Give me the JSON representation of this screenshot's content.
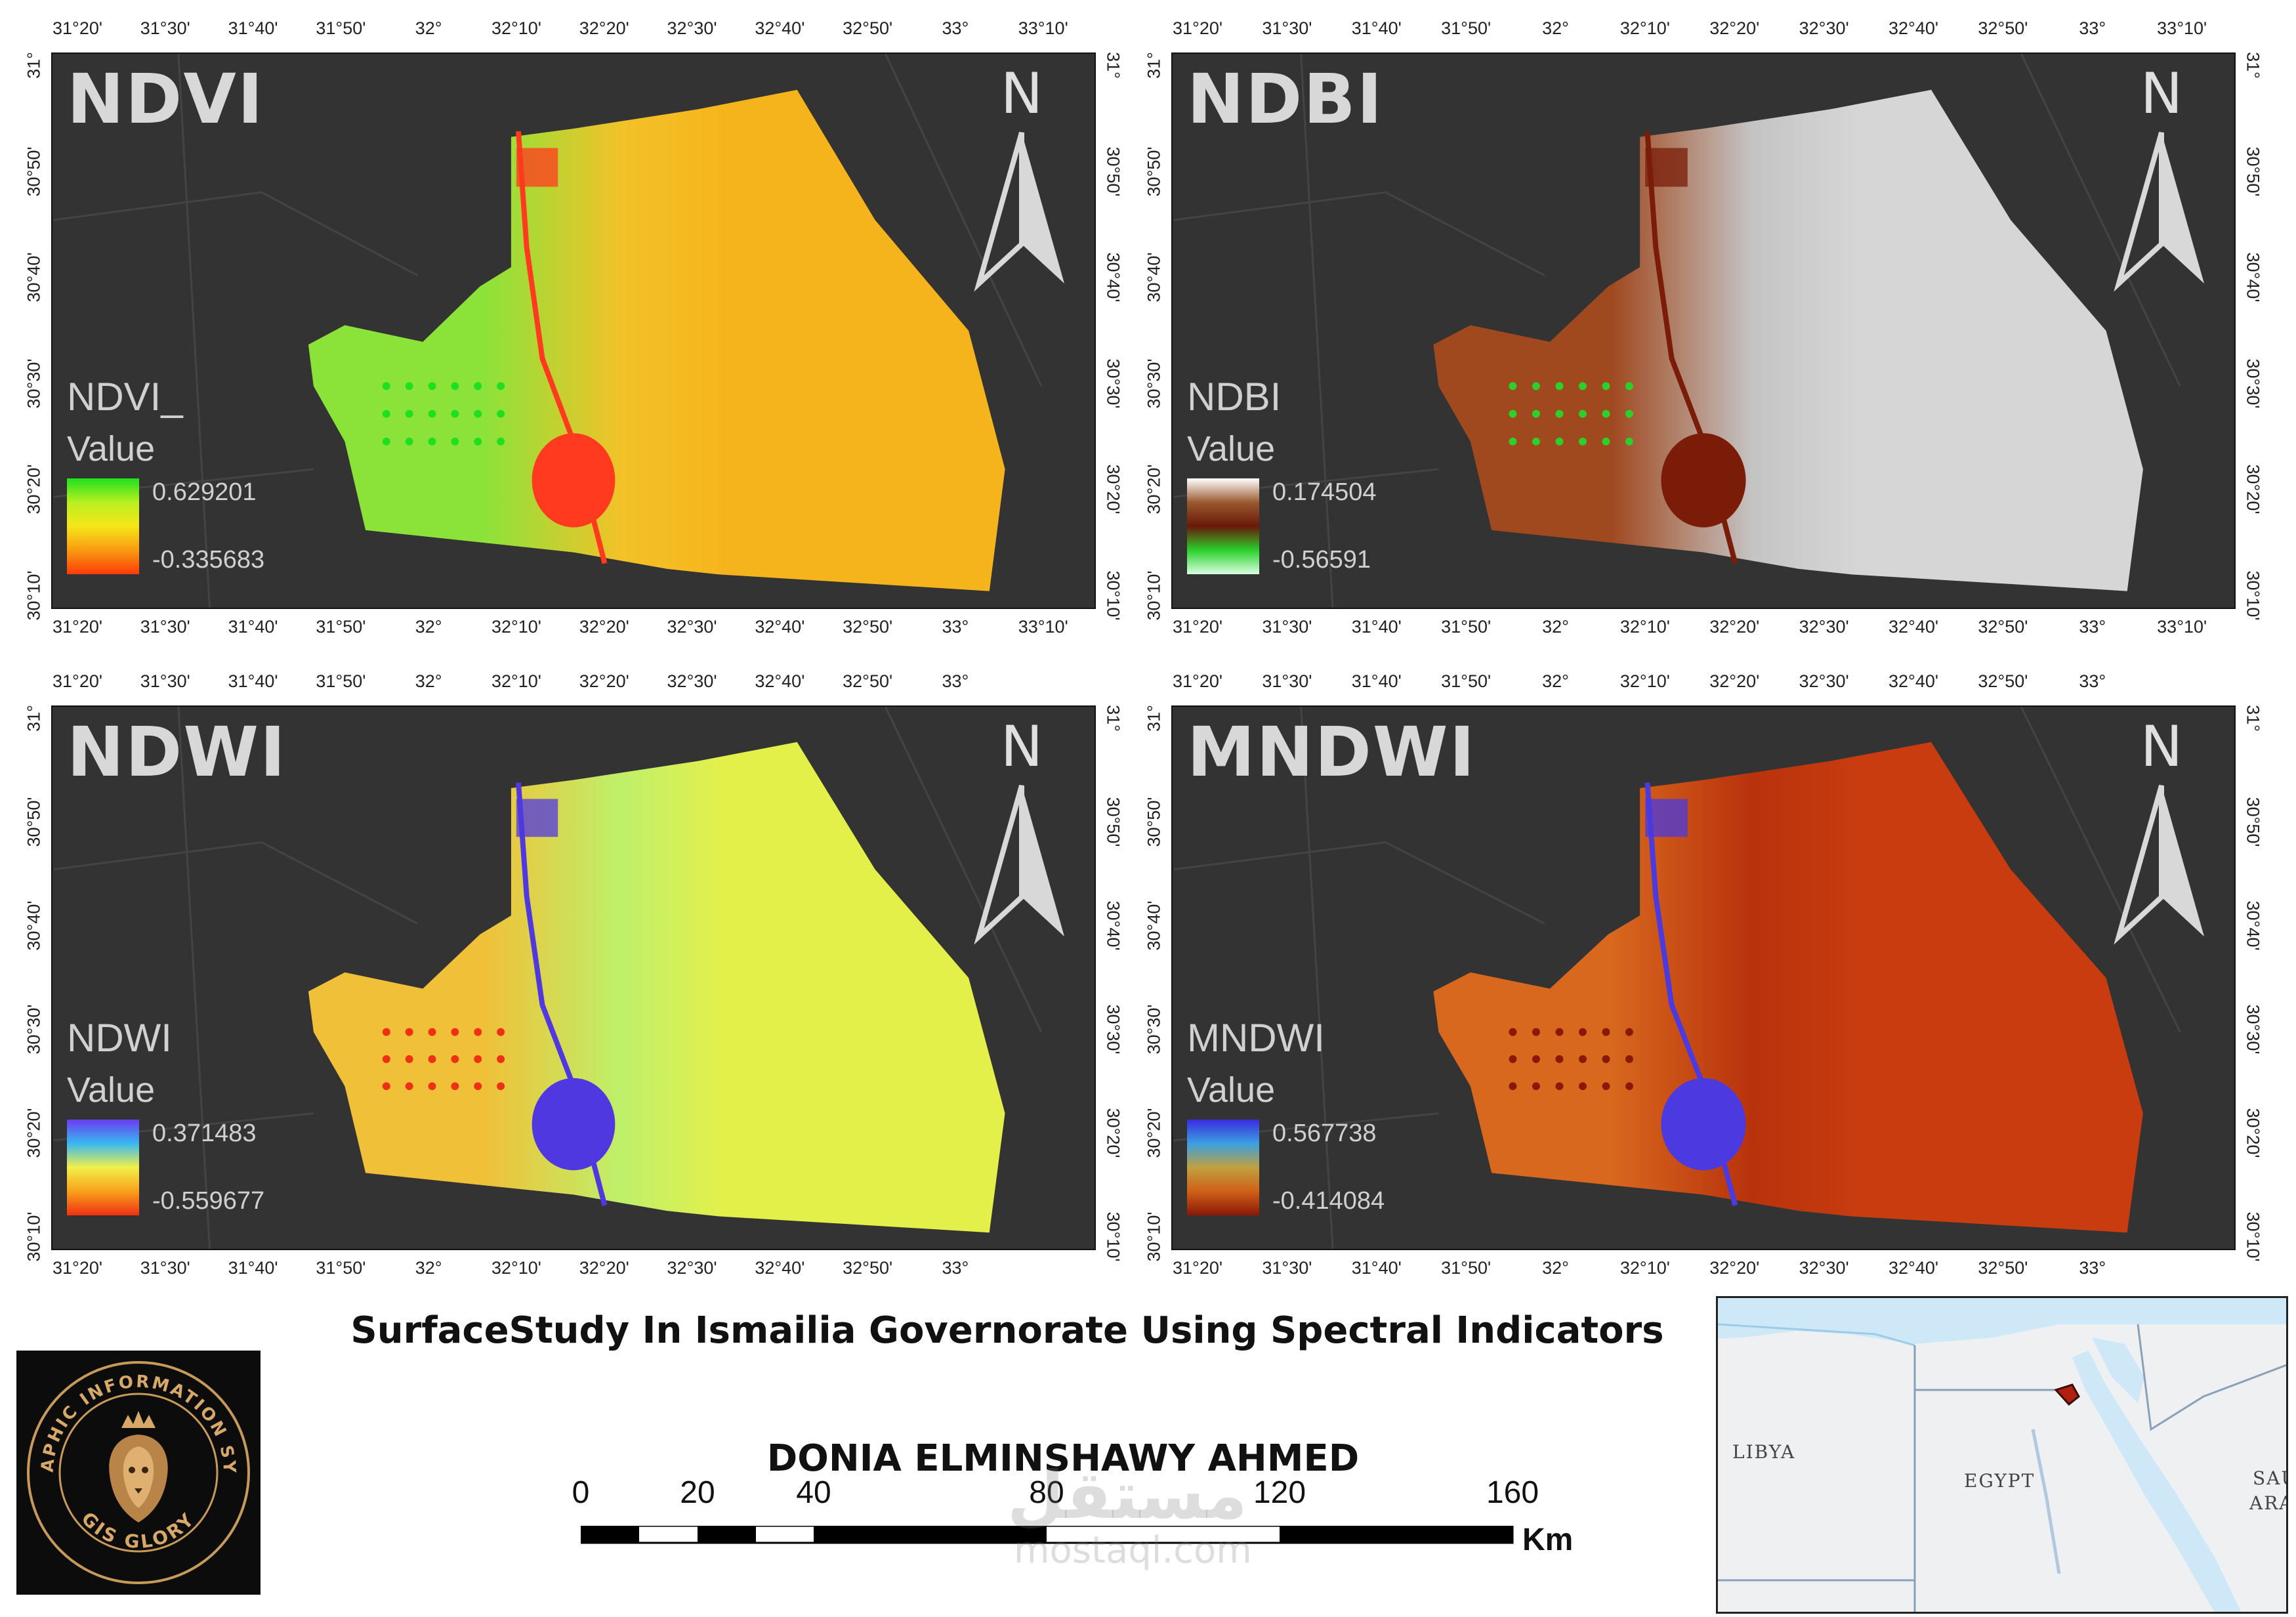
{
  "panels": [
    {
      "id": "ndvi",
      "title": "NDVI",
      "legend_title": "NDVI_",
      "legend_sub": "Value",
      "max": "0.629201",
      "min": "-0.335683",
      "ramp": [
        "#1fe01f",
        "#b8f020",
        "#f6e618",
        "#f89a10",
        "#ff3a0a"
      ],
      "base": "#f6b41c",
      "base2": "#f2c228",
      "west": "#8be33a",
      "water": "#ff3a1e"
    },
    {
      "id": "ndbi",
      "title": "NDBI",
      "legend_title": "NDBI",
      "legend_sub": "Value",
      "max": "0.174504",
      "min": "-0.56591",
      "ramp": [
        "#ffffff",
        "#9a5a30",
        "#6a1808",
        "#2bd02b",
        "#d8ffe0"
      ],
      "base": "#d6d6d6",
      "base2": "#c4c4c4",
      "west": "#a0481e",
      "water": "#7a1c08"
    },
    {
      "id": "ndwi",
      "title": "NDWI",
      "legend_title": "NDWI",
      "legend_sub": "Value",
      "max": "0.371483",
      "min": "-0.559677",
      "ramp": [
        "#6a3cf0",
        "#38b8f0",
        "#f2f04a",
        "#f8a01a",
        "#f03014"
      ],
      "base": "#e4f04a",
      "base2": "#bff06a",
      "west": "#f0c038",
      "water": "#5038e0"
    },
    {
      "id": "mndwi",
      "title": "MNDWI",
      "legend_title": "MNDWI",
      "legend_sub": "Value",
      "max": "0.567738",
      "min": "-0.414084",
      "ramp": [
        "#3a2ce0",
        "#3aa0e0",
        "#c0a040",
        "#d06018",
        "#8a1808"
      ],
      "base": "#c83c10",
      "base2": "#b8320c",
      "west": "#d8681e",
      "water": "#4a3ae0"
    }
  ],
  "axes": {
    "top_lon": [
      "31°20'",
      "31°30'",
      "31°40'",
      "31°50'",
      "32°",
      "32°10'",
      "32°20'",
      "32°30'",
      "32°40'",
      "32°50'",
      "33°",
      "33°10'"
    ],
    "bottom_lon": [
      "31°20'",
      "31°30'",
      "31°40'",
      "31°50'",
      "32°",
      "32°10'",
      "32°20'",
      "32°30'",
      "32°40'",
      "32°50'",
      "33°"
    ],
    "lat_top": [
      "31°",
      "30°50'",
      "30°40'",
      "30°30'",
      "30°20'",
      "30°10'"
    ],
    "north_label": "N"
  },
  "title": "SurfaceStudy In Ismailia Governorate Using Spectral Indicators",
  "author": "DONIA ELMINSHAWY AHMED",
  "scale": {
    "labels": [
      "0",
      "20",
      "40",
      "80",
      "120",
      "160"
    ],
    "unit": "Km"
  },
  "logo": {
    "ring_text_top": "GEOGRAPHIC INFORMATION SYSTEMS",
    "ring_text_bottom": "GIS GLORY"
  },
  "inset": {
    "labels": [
      "LIBYA",
      "EGYPT",
      "SAUDI",
      "ARAB"
    ]
  },
  "watermark": {
    "arabic": "مستقل",
    "latin": "mostaql.com"
  }
}
